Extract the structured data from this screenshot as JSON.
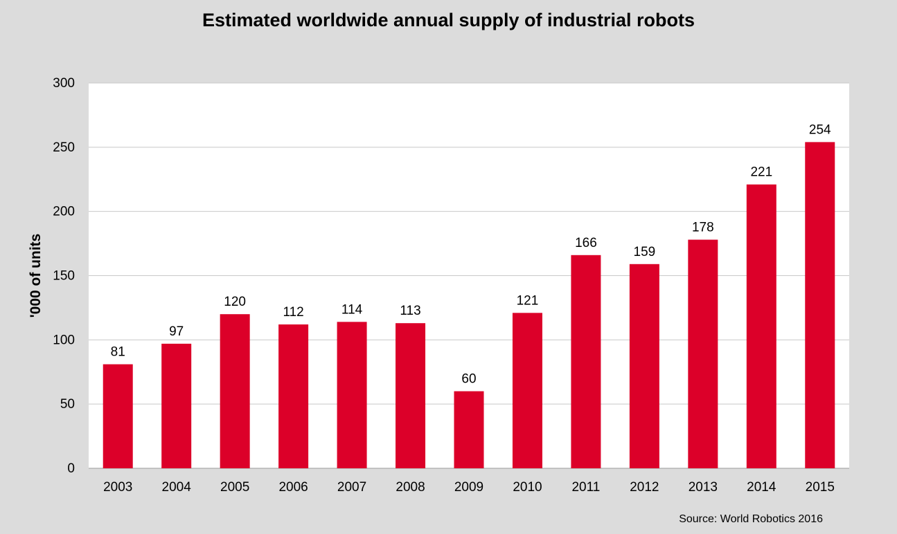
{
  "chart_data": {
    "type": "bar",
    "title": "Estimated worldwide annual supply of industrial robots",
    "xlabel": "",
    "ylabel": "'000 of units",
    "categories": [
      "2003",
      "2004",
      "2005",
      "2006",
      "2007",
      "2008",
      "2009",
      "2010",
      "2011",
      "2012",
      "2013",
      "2014",
      "2015"
    ],
    "values": [
      81,
      97,
      120,
      112,
      114,
      113,
      60,
      121,
      166,
      159,
      178,
      221,
      254
    ],
    "data_labels": [
      "81",
      "97",
      "120",
      "112",
      "114",
      "113",
      "60",
      "121",
      "166",
      "159",
      "178",
      "221",
      "254"
    ],
    "ylim": [
      0,
      300
    ],
    "yticks": [
      0,
      50,
      100,
      150,
      200,
      250,
      300
    ],
    "grid": true,
    "legend": "none",
    "source": "Source: World Robotics 2016"
  },
  "colors": {
    "bar": "#dc0029",
    "plot_background": "#ffffff",
    "page_background": "#dcdcdc",
    "gridline": "#c8c8c8"
  }
}
